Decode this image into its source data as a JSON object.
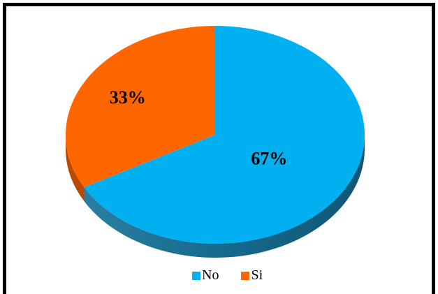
{
  "chart_data": {
    "type": "pie",
    "style": "3d",
    "categories": [
      "No",
      "Si"
    ],
    "values": [
      67,
      33
    ],
    "labels": [
      "67%",
      "33%"
    ],
    "colors": [
      "#00b0f0",
      "#ff6600"
    ],
    "shade_colors": [
      "#0f6f92",
      "#b94a00"
    ],
    "legend_position": "bottom"
  }
}
